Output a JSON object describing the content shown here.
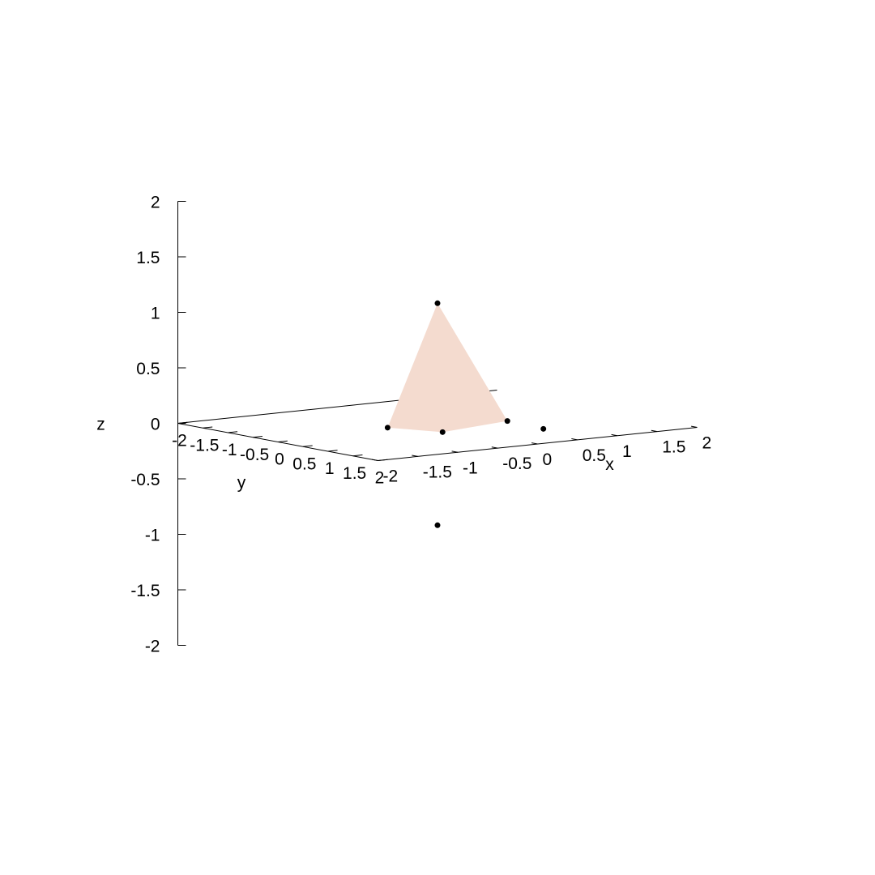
{
  "chart_data": {
    "type": "scatter",
    "subtype": "3d-scatter-with-filled-polygon",
    "title": "",
    "axes": {
      "x": {
        "label": "x",
        "range": [
          -2,
          2
        ],
        "ticks": [
          "-2",
          "-1.5",
          "-1",
          "-0.5",
          "0",
          "0.5",
          "1",
          "1.5",
          "2"
        ]
      },
      "y": {
        "label": "y",
        "range": [
          -2,
          2
        ],
        "ticks": [
          "-2",
          "-1.5",
          "-1",
          "-0.5",
          "0",
          "0.5",
          "1",
          "1.5",
          "2"
        ]
      },
      "z": {
        "label": "z",
        "range": [
          -2,
          2
        ],
        "ticks": [
          "-2",
          "-1.5",
          "-1",
          "-0.5",
          "0",
          "0.5",
          "1",
          "1.5",
          "2"
        ]
      }
    },
    "points": [
      {
        "x": 0,
        "y": 0,
        "z": 1.1
      },
      {
        "x": 0,
        "y": 0,
        "z": -0.9
      },
      {
        "x": 0.75,
        "y": 0.2,
        "z": 0
      },
      {
        "x": -0.25,
        "y": 0.5,
        "z": 0
      },
      {
        "x": -0.5,
        "y": -0.2,
        "z": 0
      },
      {
        "x": 0.7,
        "y": 1.0,
        "z": 0
      }
    ],
    "polygon": {
      "color": "#f4dbcf",
      "vertices": [
        {
          "x": 0,
          "y": 0,
          "z": 1.1
        },
        {
          "x": 0.75,
          "y": 0.2,
          "z": 0
        },
        {
          "x": -0.25,
          "y": 0.5,
          "z": 0
        },
        {
          "x": -0.5,
          "y": -0.2,
          "z": 0
        }
      ]
    },
    "grid": false,
    "legend": "none",
    "point_color": "#000000",
    "axis_color": "#000000"
  }
}
